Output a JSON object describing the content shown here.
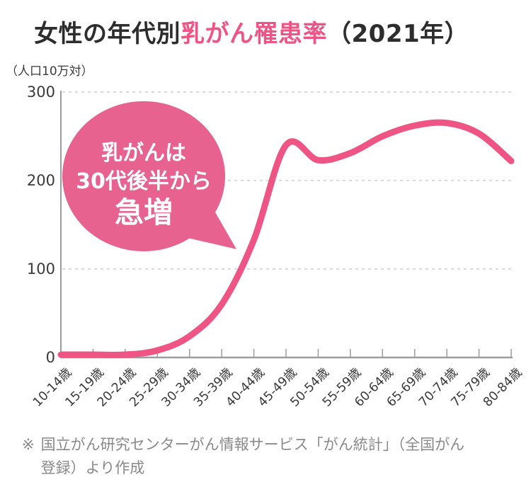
{
  "title": {
    "part1": "女性の年代別",
    "accent": "乳がん罹患率",
    "part3": "（2021年）"
  },
  "annotation": {
    "line1": "乳がんは",
    "line2": "30代後半から",
    "line3": "急増"
  },
  "footer": {
    "marker": "※",
    "line1": "国立がん研究センターがん情報サービス「がん統計」（全国がん",
    "line2": "登録）より作成"
  },
  "colors": {
    "accent": "#ee5585",
    "line": "#ee5585",
    "bubble": "#e7628f",
    "grid": "#cfcfcf",
    "axis": "#9c9c9c",
    "tick_label": "#3a3a3a",
    "title_dark": "#2d2d2d",
    "footer_gray": "#898989"
  },
  "chart_data": {
    "type": "line",
    "title": "女性の年代別乳がん罹患率（2021年）",
    "ylabel": "（人口10万対）",
    "xlabel": "",
    "categories": [
      "10-14歳",
      "15-19歳",
      "20-24歳",
      "25-29歳",
      "30-34歳",
      "35-39歳",
      "40-44歳",
      "45-49歳",
      "50-54歳",
      "55-59歳",
      "60-64歳",
      "65-69歳",
      "70-74歳",
      "75-79歳",
      "80-84歳"
    ],
    "values": [
      0.5,
      0.5,
      2,
      8,
      24,
      60,
      133,
      240,
      223,
      231,
      250,
      262,
      265,
      253,
      222
    ],
    "ylim": [
      0,
      300
    ],
    "yticks": [
      0,
      100,
      200,
      300
    ],
    "grid": "horizontal-dashed",
    "legend": "none",
    "annotation": "乳がんは30代後半から急増",
    "series_name": "乳がん罹患率（人口10万対）"
  }
}
